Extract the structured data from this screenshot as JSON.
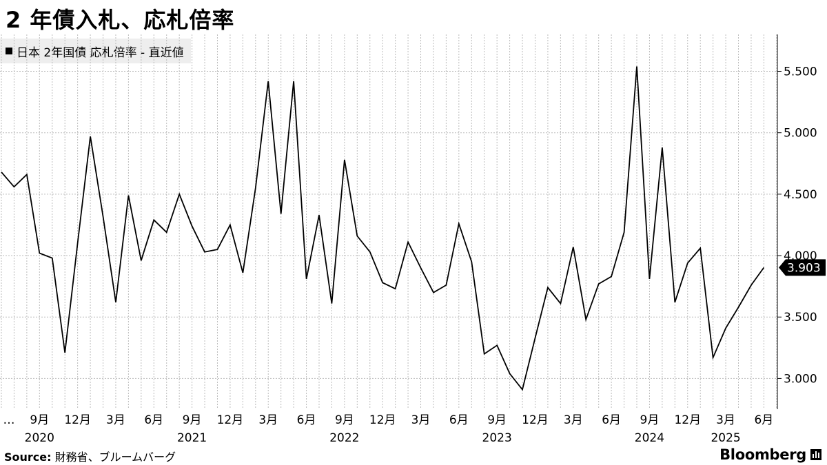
{
  "title": "2 年債入札、応札倍率",
  "legend_label": "日本 2年国債 応札倍率 - 直近値",
  "source_label": "Source:",
  "source_text": "財務省、ブルームバーグ",
  "brand": "Bloomberg",
  "colors": {
    "line": "#000000",
    "grid": "#bbbbbb",
    "legend_bg": "#eeeeee"
  },
  "chart_data": {
    "type": "line",
    "title": "2 年債入札、応札倍率",
    "ylim": [
      2.75,
      5.8
    ],
    "yticks": [
      3.0,
      3.5,
      4.0,
      4.5,
      5.0,
      5.5
    ],
    "ytick_labels": [
      "3.000",
      "3.500",
      "4.000",
      "4.500",
      "5.000",
      "5.500"
    ],
    "last_value_label": "3.903",
    "grid": true,
    "x_month_ticks": [
      "…",
      "9月",
      "12月",
      "3月",
      "6月",
      "9月",
      "12月",
      "3月",
      "6月",
      "9月",
      "12月",
      "3月",
      "6月",
      "9月",
      "12月",
      "3月",
      "6月",
      "9月",
      "12月",
      "3月",
      "6月"
    ],
    "x_year_labels": [
      "2020",
      "2021",
      "2022",
      "2023",
      "2024",
      "2025"
    ],
    "series": [
      {
        "x": [
          "2020-06",
          "2020-07",
          "2020-08",
          "2020-09",
          "2020-10",
          "2020-11",
          "2020-12",
          "2021-01",
          "2021-02",
          "2021-03",
          "2021-04",
          "2021-05",
          "2021-06",
          "2021-07",
          "2021-08",
          "2021-09",
          "2021-10",
          "2021-11",
          "2021-12",
          "2022-01",
          "2022-02",
          "2022-03",
          "2022-04",
          "2022-05",
          "2022-06",
          "2022-07",
          "2022-08",
          "2022-09",
          "2022-10",
          "2022-11",
          "2022-12",
          "2023-01",
          "2023-02",
          "2023-03",
          "2023-04",
          "2023-05",
          "2023-06",
          "2023-07",
          "2023-08",
          "2023-09",
          "2023-10",
          "2023-11",
          "2023-12",
          "2024-01",
          "2024-02",
          "2024-03",
          "2024-04",
          "2024-05",
          "2024-06",
          "2024-07",
          "2024-08",
          "2024-09",
          "2024-10",
          "2024-11",
          "2024-12",
          "2025-01",
          "2025-02",
          "2025-03",
          "2025-04",
          "2025-05",
          "2025-06"
        ],
        "values": [
          4.68,
          4.56,
          4.66,
          4.02,
          3.98,
          3.21,
          4.1,
          4.97,
          4.32,
          3.62,
          4.49,
          3.96,
          4.29,
          4.19,
          4.5,
          4.24,
          4.03,
          4.05,
          4.25,
          3.86,
          4.55,
          5.42,
          4.34,
          5.42,
          3.81,
          4.33,
          3.61,
          4.78,
          4.16,
          4.03,
          3.78,
          3.73,
          4.11,
          3.9,
          3.7,
          3.76,
          4.26,
          3.95,
          3.2,
          3.27,
          3.04,
          2.91,
          3.33,
          3.74,
          3.61,
          4.07,
          3.48,
          3.77,
          3.83,
          4.19,
          5.54,
          3.81,
          4.88,
          3.62,
          3.94,
          4.06,
          3.17,
          3.41,
          3.58,
          3.76,
          3.903
        ]
      }
    ]
  }
}
